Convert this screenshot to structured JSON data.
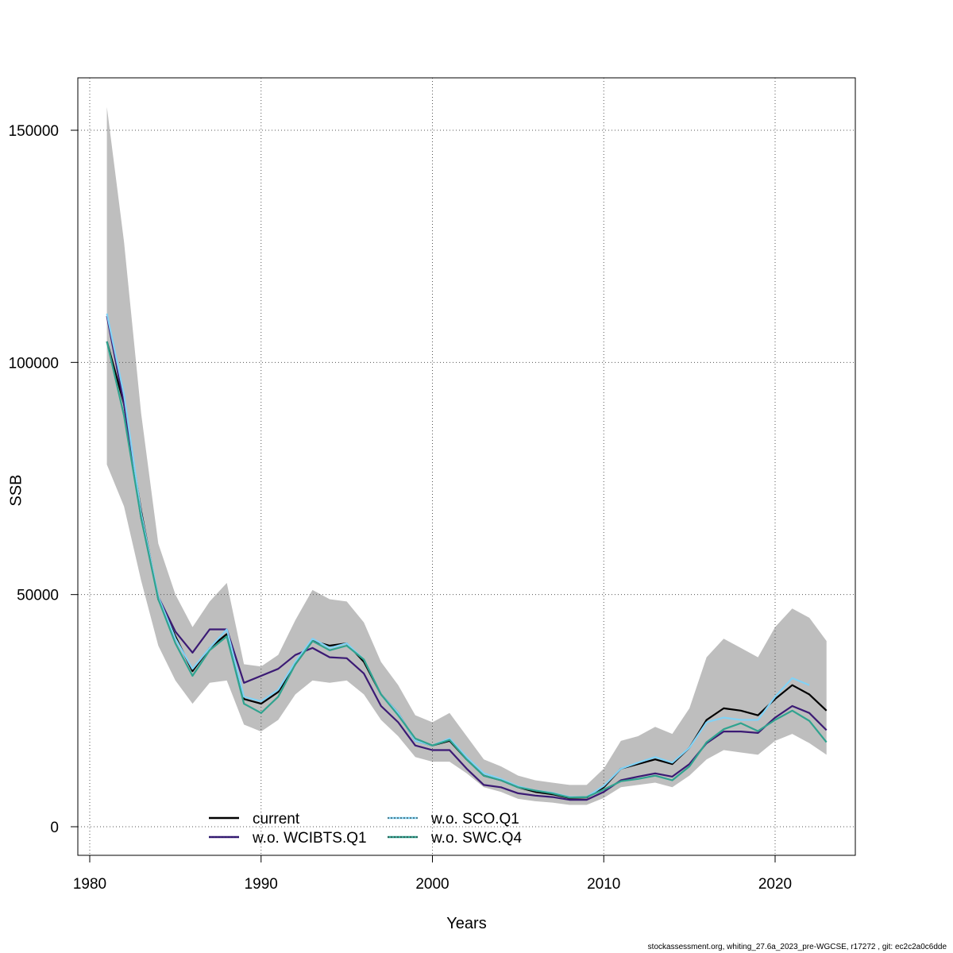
{
  "chart_data": {
    "type": "line",
    "xlabel": "Years",
    "ylabel": "SSB",
    "xlim": [
      1980,
      2024
    ],
    "ylim": [
      0,
      160000
    ],
    "xticks": [
      1980,
      1990,
      2000,
      2010,
      2020
    ],
    "yticks": [
      0,
      50000,
      100000,
      150000
    ],
    "grid": true,
    "legend_position": "bottom-left",
    "confidence_band": {
      "x": [
        1981,
        1982,
        1983,
        1984,
        1985,
        1986,
        1987,
        1988,
        1989,
        1990,
        1991,
        1992,
        1993,
        1994,
        1995,
        1996,
        1997,
        1998,
        1999,
        2000,
        2001,
        2002,
        2003,
        2004,
        2005,
        2006,
        2007,
        2008,
        2009,
        2010,
        2011,
        2012,
        2013,
        2014,
        2015,
        2016,
        2017,
        2018,
        2019,
        2020,
        2021,
        2022,
        2023
      ],
      "lower": [
        78000,
        69000,
        53000,
        39000,
        31500,
        26500,
        31000,
        31500,
        22000,
        20500,
        23000,
        28500,
        31500,
        31000,
        31500,
        28500,
        23000,
        19500,
        15000,
        14000,
        14000,
        11500,
        8500,
        7500,
        6000,
        5500,
        5200,
        4700,
        4700,
        6200,
        8500,
        9000,
        9500,
        8500,
        11000,
        14500,
        16500,
        16000,
        15500,
        18500,
        20000,
        18000,
        15500
      ],
      "upper": [
        155000,
        126000,
        89000,
        61000,
        50000,
        43000,
        48500,
        52500,
        35000,
        34500,
        37000,
        44500,
        51000,
        49000,
        48500,
        44000,
        35500,
        30500,
        24000,
        22500,
        24500,
        19500,
        14500,
        13000,
        11000,
        10000,
        9500,
        9000,
        9000,
        12500,
        18500,
        19500,
        21500,
        20000,
        25500,
        36500,
        40500,
        38500,
        36500,
        43000,
        47000,
        45000,
        40000
      ]
    },
    "series": [
      {
        "name": "current",
        "color": "#000000",
        "dashed": false,
        "values": [
          104500,
          91000,
          68000,
          49000,
          41000,
          33500,
          38500,
          41500,
          27500,
          26500,
          29000,
          35000,
          40000,
          39000,
          39500,
          35500,
          28500,
          24500,
          18500,
          17500,
          18500,
          14500,
          11000,
          10000,
          8500,
          7500,
          7000,
          6200,
          6300,
          8500,
          12500,
          13500,
          14500,
          13500,
          17000,
          23000,
          25500,
          25000,
          24000,
          27500,
          30500,
          28500,
          25000
        ]
      },
      {
        "name": "w.o. WCIBTS.Q1",
        "color": "#3b1a74",
        "dashed": false,
        "values": [
          110000,
          91000,
          66500,
          49500,
          42000,
          37500,
          42500,
          42500,
          31000,
          32500,
          34000,
          37000,
          38500,
          36500,
          36300,
          33000,
          26000,
          22500,
          17500,
          16500,
          16500,
          12500,
          9000,
          8500,
          7200,
          6700,
          6400,
          5800,
          5800,
          7500,
          10000,
          10800,
          11500,
          10800,
          13500,
          18000,
          20500,
          20500,
          20200,
          23500,
          26000,
          24500,
          20800
        ]
      },
      {
        "name": "w.o. SCO.Q1",
        "color": "#82d2f5",
        "dashed": false,
        "values": [
          110500,
          93000,
          67500,
          49500,
          40500,
          34000,
          38500,
          42500,
          28000,
          27000,
          29500,
          35500,
          40500,
          38500,
          39500,
          36000,
          28500,
          24500,
          18500,
          17500,
          19000,
          15000,
          11500,
          10300,
          8700,
          7800,
          7300,
          6400,
          6400,
          8800,
          12500,
          13800,
          15000,
          13800,
          17000,
          22500,
          23500,
          23000,
          23000,
          28000,
          32000,
          30500,
          null
        ]
      },
      {
        "name": "w.o. SWC.Q4",
        "color": "#30a38f",
        "dashed": false,
        "values": [
          104500,
          88500,
          66500,
          49000,
          39500,
          32500,
          38000,
          41000,
          26500,
          24500,
          28000,
          35000,
          40000,
          38000,
          39000,
          36000,
          28500,
          24000,
          19000,
          17500,
          18700,
          14500,
          11000,
          10000,
          8500,
          7800,
          7200,
          6300,
          6400,
          8000,
          9800,
          10300,
          11000,
          10000,
          13000,
          18200,
          21000,
          22300,
          20600,
          23000,
          25000,
          22800,
          18200
        ]
      }
    ],
    "legend": {
      "entries": [
        "current",
        "w.o. WCIBTS.Q1",
        "w.o. SCO.Q1",
        "w.o. SWC.Q4"
      ]
    }
  },
  "footer": "stockassessment.org, whiting_27.6a_2023_pre-WGCSE, r17272 , git: ec2c2a0c6dde"
}
